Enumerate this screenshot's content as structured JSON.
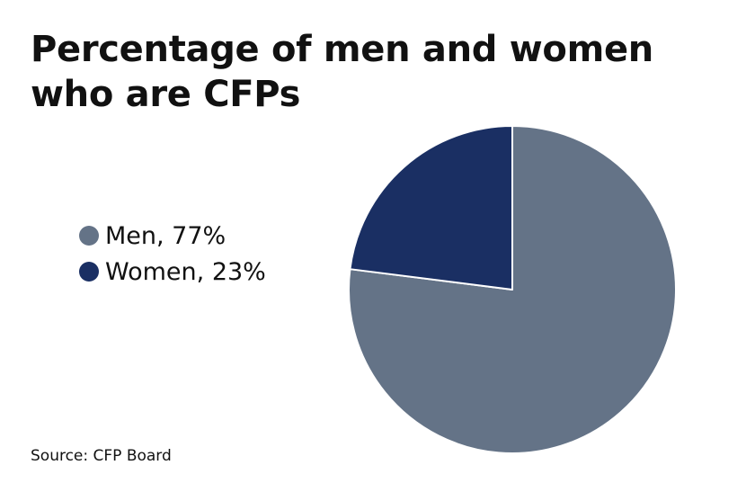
{
  "chart_data": {
    "type": "pie",
    "title": "Percentage of men and women who are CFPs",
    "categories": [
      "Men",
      "Women"
    ],
    "values": [
      77,
      23
    ],
    "unit": "%",
    "legend": {
      "placement": "left",
      "items": [
        {
          "label": "Men, 77%",
          "color": "#647387"
        },
        {
          "label": "Women, 23%",
          "color": "#1a2f63"
        }
      ]
    },
    "colors": [
      "#647387",
      "#1a2f63"
    ],
    "source": "Source: CFP Board"
  }
}
